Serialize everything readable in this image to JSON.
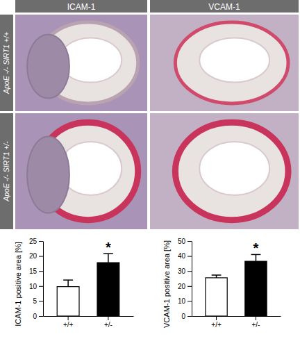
{
  "figure": {
    "column_headers": [
      "ICAM-1",
      "VCAM-1"
    ],
    "row_labels": [
      "ApoE -/- SIRT1 +/+",
      "ApoE -/- SIRT1 +/-"
    ]
  },
  "chart_data": [
    {
      "type": "bar",
      "y_label": "ICAM-1 positive area [%]",
      "categories": [
        "+/+",
        "+/-"
      ],
      "values": [
        9.8,
        17.8
      ],
      "errors": [
        2.2,
        3.0
      ],
      "colors": [
        "#ffffff",
        "#000000"
      ],
      "ylim": [
        0,
        25
      ],
      "yticks": [
        0,
        5,
        10,
        15,
        20,
        25
      ],
      "annotations": [
        {
          "x": "+/-",
          "text": "*"
        }
      ]
    },
    {
      "type": "bar",
      "y_label": "VCAM-1 positive area [%]",
      "categories": [
        "+/+",
        "+/-"
      ],
      "values": [
        25.5,
        36.5
      ],
      "errors": [
        1.8,
        4.5
      ],
      "colors": [
        "#ffffff",
        "#000000"
      ],
      "ylim": [
        0,
        50
      ],
      "yticks": [
        0,
        10,
        20,
        30,
        40,
        50
      ],
      "annotations": [
        {
          "x": "+/-",
          "text": "*"
        }
      ]
    }
  ]
}
